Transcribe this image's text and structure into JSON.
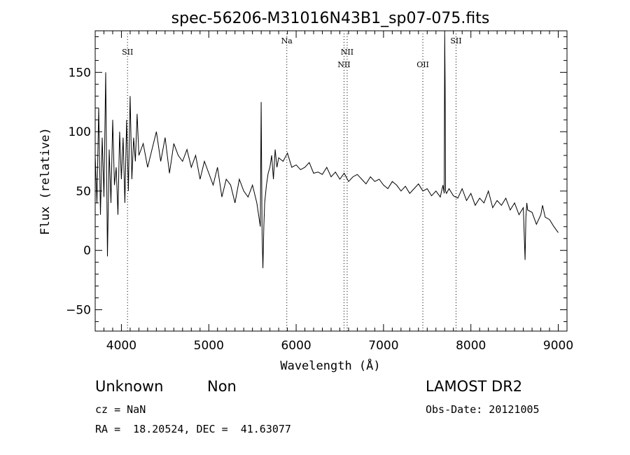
{
  "chart_data": {
    "type": "line",
    "title": "spec-56206-M31016N43B1_sp07-075.fits",
    "xlabel": "Wavelength (Å)",
    "ylabel": "Flux (relative)",
    "xlim": [
      3700,
      9100
    ],
    "ylim": [
      -68,
      185
    ],
    "xticks": [
      4000,
      5000,
      6000,
      7000,
      8000,
      9000
    ],
    "yticks": [
      -50,
      0,
      50,
      100,
      150
    ],
    "line_markers": [
      {
        "label": "SII",
        "x": 4070,
        "row": 1
      },
      {
        "label": "Na",
        "x": 5893,
        "row": 0
      },
      {
        "label": "NII",
        "x": 6548,
        "row": 2
      },
      {
        "label": "NII",
        "x": 6584,
        "row": 1
      },
      {
        "label": "OII",
        "x": 7450,
        "row": 2
      },
      {
        "label": "SII",
        "x": 7830,
        "row": 0
      }
    ],
    "series": [
      {
        "x": [
          3700,
          3720,
          3740,
          3760,
          3780,
          3800,
          3820,
          3840,
          3860,
          3880,
          3900,
          3920,
          3940,
          3960,
          3980,
          4000,
          4020,
          4040,
          4060,
          4080,
          4100,
          4120,
          4140,
          4160,
          4180,
          4200,
          4250,
          4300,
          4350,
          4400,
          4450,
          4500,
          4550,
          4600,
          4650,
          4700,
          4750,
          4800,
          4850,
          4900,
          4950,
          5000,
          5050,
          5100,
          5150,
          5200,
          5250,
          5300,
          5350,
          5400,
          5450,
          5500,
          5550,
          5570,
          5590,
          5600,
          5610,
          5620,
          5630,
          5640,
          5660,
          5680,
          5700,
          5720,
          5740,
          5760,
          5780,
          5800,
          5850,
          5900,
          5950,
          6000,
          6050,
          6100,
          6150,
          6200,
          6250,
          6300,
          6350,
          6400,
          6450,
          6500,
          6550,
          6600,
          6650,
          6700,
          6750,
          6800,
          6850,
          6900,
          6950,
          7000,
          7050,
          7100,
          7150,
          7200,
          7250,
          7300,
          7350,
          7400,
          7450,
          7500,
          7550,
          7600,
          7650,
          7680,
          7695,
          7700,
          7705,
          7710,
          7720,
          7750,
          7800,
          7850,
          7900,
          7950,
          8000,
          8050,
          8100,
          8150,
          8200,
          8250,
          8300,
          8350,
          8400,
          8450,
          8500,
          8550,
          8600,
          8620,
          8630,
          8640,
          8650,
          8700,
          8750,
          8800,
          8820,
          8850,
          8900,
          8950,
          9000
        ],
        "y": [
          80,
          40,
          120,
          30,
          95,
          45,
          150,
          -5,
          85,
          40,
          110,
          55,
          70,
          30,
          100,
          60,
          95,
          40,
          110,
          50,
          130,
          60,
          95,
          75,
          115,
          80,
          90,
          70,
          85,
          100,
          75,
          95,
          65,
          90,
          80,
          75,
          85,
          70,
          80,
          60,
          75,
          65,
          55,
          70,
          45,
          60,
          55,
          40,
          60,
          50,
          45,
          55,
          40,
          30,
          20,
          125,
          15,
          -15,
          20,
          40,
          55,
          65,
          70,
          80,
          60,
          85,
          70,
          78,
          75,
          82,
          70,
          72,
          68,
          70,
          74,
          65,
          66,
          64,
          70,
          62,
          66,
          60,
          65,
          58,
          62,
          64,
          60,
          56,
          62,
          58,
          60,
          55,
          52,
          58,
          55,
          50,
          54,
          48,
          52,
          56,
          50,
          52,
          46,
          50,
          45,
          55,
          48,
          182,
          140,
          50,
          48,
          52,
          46,
          44,
          52,
          42,
          48,
          38,
          44,
          40,
          50,
          36,
          42,
          38,
          44,
          34,
          40,
          30,
          36,
          -8,
          28,
          40,
          34,
          32,
          22,
          30,
          38,
          28,
          26,
          20,
          15
        ]
      }
    ]
  },
  "footer": {
    "type_label": "Unknown",
    "subclass_label": "Non",
    "survey_label": "LAMOST DR2",
    "cz_text": "cz = NaN",
    "obs_date_text": "Obs-Date: 20121005",
    "radec_text": "RA =  18.20524, DEC =  41.63077"
  }
}
